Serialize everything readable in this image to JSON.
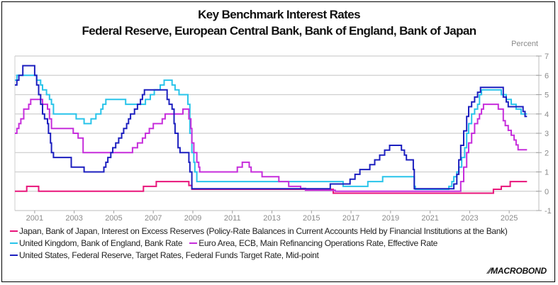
{
  "chart_data": {
    "type": "line",
    "title": "Key Benchmark Interest Rates",
    "subtitle": "Federal Reserve, European Central Bank, Bank of England, Bank of Japan",
    "ylabel": "Percent",
    "xlabel": "",
    "ylim": [
      -1,
      7
    ],
    "xlim": [
      2000,
      2026.5
    ],
    "y_ticks": [
      -1,
      0,
      1,
      2,
      3,
      4,
      5,
      6,
      7
    ],
    "x_ticks": [
      2001,
      2003,
      2005,
      2007,
      2009,
      2011,
      2013,
      2015,
      2017,
      2019,
      2021,
      2023,
      2025
    ],
    "grid": true,
    "y_axis_side": "right",
    "legend_position": "bottom",
    "series": [
      {
        "name": "Japan, Bank of Japan, Interest on Excess Reserves (Policy-Rate Balances in Current Accounts Held by Financial Institutions at the Bank)",
        "color": "#e8157a",
        "steps": [
          [
            2000.0,
            0.0
          ],
          [
            2000.6,
            0.25
          ],
          [
            2001.2,
            0.0
          ],
          [
            2006.5,
            0.25
          ],
          [
            2007.15,
            0.5
          ],
          [
            2008.8,
            0.3
          ],
          [
            2008.95,
            0.1
          ],
          [
            2016.1,
            -0.1
          ],
          [
            2024.2,
            0.1
          ],
          [
            2024.6,
            0.25
          ],
          [
            2025.05,
            0.5
          ],
          [
            2025.9,
            0.5
          ]
        ]
      },
      {
        "name": "United Kingdom, Bank of England, Bank Rate",
        "color": "#29c4ea",
        "steps": [
          [
            2000.0,
            5.75
          ],
          [
            2000.1,
            6.0
          ],
          [
            2001.1,
            5.75
          ],
          [
            2001.3,
            5.5
          ],
          [
            2001.4,
            5.25
          ],
          [
            2001.6,
            5.0
          ],
          [
            2001.75,
            4.75
          ],
          [
            2001.85,
            4.5
          ],
          [
            2001.95,
            4.0
          ],
          [
            2003.1,
            3.75
          ],
          [
            2003.5,
            3.5
          ],
          [
            2003.85,
            3.75
          ],
          [
            2004.1,
            4.0
          ],
          [
            2004.35,
            4.25
          ],
          [
            2004.45,
            4.5
          ],
          [
            2004.6,
            4.75
          ],
          [
            2005.6,
            4.5
          ],
          [
            2006.6,
            4.75
          ],
          [
            2006.85,
            5.0
          ],
          [
            2007.05,
            5.25
          ],
          [
            2007.35,
            5.5
          ],
          [
            2007.55,
            5.75
          ],
          [
            2007.95,
            5.5
          ],
          [
            2008.1,
            5.25
          ],
          [
            2008.3,
            5.0
          ],
          [
            2008.75,
            4.5
          ],
          [
            2008.85,
            3.0
          ],
          [
            2008.95,
            2.0
          ],
          [
            2009.05,
            1.5
          ],
          [
            2009.1,
            1.0
          ],
          [
            2009.2,
            0.5
          ],
          [
            2016.6,
            0.25
          ],
          [
            2017.85,
            0.5
          ],
          [
            2018.6,
            0.75
          ],
          [
            2020.2,
            0.25
          ],
          [
            2020.25,
            0.1
          ],
          [
            2021.95,
            0.25
          ],
          [
            2022.1,
            0.5
          ],
          [
            2022.2,
            0.75
          ],
          [
            2022.35,
            1.0
          ],
          [
            2022.45,
            1.25
          ],
          [
            2022.6,
            1.75
          ],
          [
            2022.75,
            2.25
          ],
          [
            2022.85,
            3.0
          ],
          [
            2022.95,
            3.5
          ],
          [
            2023.1,
            4.0
          ],
          [
            2023.25,
            4.25
          ],
          [
            2023.4,
            4.5
          ],
          [
            2023.5,
            5.0
          ],
          [
            2023.6,
            5.25
          ],
          [
            2024.6,
            5.0
          ],
          [
            2024.85,
            4.75
          ],
          [
            2025.1,
            4.5
          ],
          [
            2025.35,
            4.25
          ],
          [
            2025.6,
            4.0
          ],
          [
            2025.9,
            4.0
          ]
        ]
      },
      {
        "name": "Euro Area, ECB, Main Refinancing Operations Rate, Effective Rate",
        "color": "#c62ddb",
        "steps": [
          [
            2000.0,
            3.0
          ],
          [
            2000.1,
            3.25
          ],
          [
            2000.2,
            3.5
          ],
          [
            2000.3,
            3.75
          ],
          [
            2000.45,
            4.25
          ],
          [
            2000.7,
            4.5
          ],
          [
            2000.8,
            4.75
          ],
          [
            2001.4,
            4.5
          ],
          [
            2001.65,
            4.25
          ],
          [
            2001.75,
            3.75
          ],
          [
            2001.85,
            3.25
          ],
          [
            2002.95,
            3.0
          ],
          [
            2003.2,
            2.75
          ],
          [
            2003.45,
            2.0
          ],
          [
            2005.95,
            2.25
          ],
          [
            2006.2,
            2.5
          ],
          [
            2006.45,
            2.75
          ],
          [
            2006.6,
            3.0
          ],
          [
            2006.8,
            3.25
          ],
          [
            2007.0,
            3.5
          ],
          [
            2007.45,
            3.75
          ],
          [
            2007.6,
            4.0
          ],
          [
            2008.5,
            4.25
          ],
          [
            2008.8,
            3.75
          ],
          [
            2008.9,
            3.25
          ],
          [
            2008.95,
            2.5
          ],
          [
            2009.05,
            2.0
          ],
          [
            2009.2,
            1.5
          ],
          [
            2009.3,
            1.25
          ],
          [
            2009.35,
            1.0
          ],
          [
            2011.25,
            1.25
          ],
          [
            2011.5,
            1.5
          ],
          [
            2011.85,
            1.25
          ],
          [
            2011.95,
            1.0
          ],
          [
            2012.5,
            0.75
          ],
          [
            2013.35,
            0.5
          ],
          [
            2013.85,
            0.25
          ],
          [
            2014.45,
            0.15
          ],
          [
            2014.7,
            0.05
          ],
          [
            2016.2,
            0.0
          ],
          [
            2022.55,
            0.5
          ],
          [
            2022.7,
            1.25
          ],
          [
            2022.85,
            2.0
          ],
          [
            2022.95,
            2.5
          ],
          [
            2023.1,
            3.0
          ],
          [
            2023.25,
            3.5
          ],
          [
            2023.4,
            3.75
          ],
          [
            2023.5,
            4.0
          ],
          [
            2023.6,
            4.25
          ],
          [
            2023.7,
            4.5
          ],
          [
            2024.45,
            4.25
          ],
          [
            2024.7,
            3.65
          ],
          [
            2024.8,
            3.4
          ],
          [
            2024.95,
            3.15
          ],
          [
            2025.1,
            2.9
          ],
          [
            2025.25,
            2.65
          ],
          [
            2025.35,
            2.4
          ],
          [
            2025.45,
            2.15
          ],
          [
            2025.9,
            2.15
          ]
        ]
      },
      {
        "name": "United States, Federal Reserve, Target Rates, Federal Funds Target Rate, Mid-point",
        "color": "#1c1fbf",
        "steps": [
          [
            2000.0,
            5.5
          ],
          [
            2000.1,
            5.75
          ],
          [
            2000.2,
            6.0
          ],
          [
            2000.4,
            6.5
          ],
          [
            2001.0,
            6.0
          ],
          [
            2001.1,
            5.5
          ],
          [
            2001.2,
            5.0
          ],
          [
            2001.3,
            4.5
          ],
          [
            2001.4,
            4.0
          ],
          [
            2001.5,
            3.75
          ],
          [
            2001.65,
            3.5
          ],
          [
            2001.7,
            3.0
          ],
          [
            2001.8,
            2.5
          ],
          [
            2001.85,
            2.0
          ],
          [
            2001.95,
            1.75
          ],
          [
            2002.85,
            1.25
          ],
          [
            2003.5,
            1.0
          ],
          [
            2004.5,
            1.25
          ],
          [
            2004.6,
            1.5
          ],
          [
            2004.7,
            1.75
          ],
          [
            2004.85,
            2.0
          ],
          [
            2004.95,
            2.25
          ],
          [
            2005.1,
            2.5
          ],
          [
            2005.25,
            2.75
          ],
          [
            2005.4,
            3.0
          ],
          [
            2005.5,
            3.25
          ],
          [
            2005.65,
            3.5
          ],
          [
            2005.75,
            3.75
          ],
          [
            2005.85,
            4.0
          ],
          [
            2006.05,
            4.25
          ],
          [
            2006.2,
            4.5
          ],
          [
            2006.35,
            4.75
          ],
          [
            2006.45,
            5.0
          ],
          [
            2006.55,
            5.25
          ],
          [
            2007.7,
            4.75
          ],
          [
            2007.8,
            4.5
          ],
          [
            2007.95,
            4.25
          ],
          [
            2008.05,
            3.5
          ],
          [
            2008.1,
            3.0
          ],
          [
            2008.25,
            2.25
          ],
          [
            2008.35,
            2.0
          ],
          [
            2008.8,
            1.5
          ],
          [
            2008.85,
            1.0
          ],
          [
            2008.95,
            0.125
          ],
          [
            2015.95,
            0.375
          ],
          [
            2016.95,
            0.625
          ],
          [
            2017.2,
            0.875
          ],
          [
            2017.45,
            1.125
          ],
          [
            2017.95,
            1.375
          ],
          [
            2018.2,
            1.625
          ],
          [
            2018.45,
            1.875
          ],
          [
            2018.7,
            2.125
          ],
          [
            2018.95,
            2.375
          ],
          [
            2019.55,
            2.125
          ],
          [
            2019.7,
            1.875
          ],
          [
            2019.8,
            1.625
          ],
          [
            2020.15,
            1.125
          ],
          [
            2020.2,
            0.125
          ],
          [
            2022.2,
            0.375
          ],
          [
            2022.35,
            0.875
          ],
          [
            2022.45,
            1.625
          ],
          [
            2022.55,
            2.375
          ],
          [
            2022.7,
            3.125
          ],
          [
            2022.85,
            3.875
          ],
          [
            2022.95,
            4.375
          ],
          [
            2023.1,
            4.625
          ],
          [
            2023.25,
            4.875
          ],
          [
            2023.4,
            5.125
          ],
          [
            2023.55,
            5.375
          ],
          [
            2024.7,
            4.875
          ],
          [
            2024.85,
            4.625
          ],
          [
            2024.95,
            4.375
          ],
          [
            2025.7,
            4.125
          ],
          [
            2025.8,
            3.875
          ],
          [
            2025.9,
            3.875
          ]
        ]
      }
    ]
  },
  "legend": {
    "rows": [
      [
        {
          "label": "Japan, Bank of Japan, Interest on Excess Reserves (Policy-Rate Balances in Current Accounts Held by Financial Institutions at the Bank)",
          "color": "#e8157a"
        }
      ],
      [
        {
          "label": "United Kingdom, Bank of England, Bank Rate",
          "color": "#29c4ea"
        },
        {
          "label": "Euro Area, ECB, Main Refinancing Operations Rate, Effective Rate",
          "color": "#c62ddb"
        }
      ],
      [
        {
          "label": "United States, Federal Reserve, Target Rates, Federal Funds Target Rate, Mid-point",
          "color": "#1c1fbf"
        }
      ]
    ]
  },
  "branding": {
    "logo_text": "MACROBOND",
    "logo_mark": "⁄⁄"
  }
}
